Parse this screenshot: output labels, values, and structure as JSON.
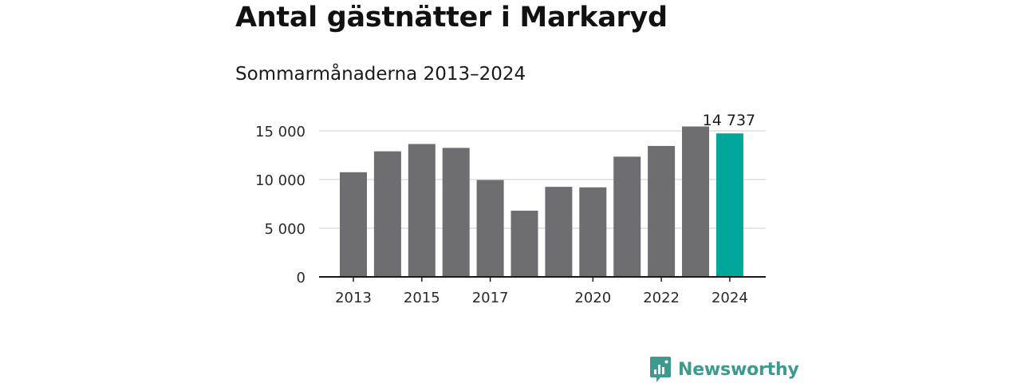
{
  "header": {
    "title": "Antal gästnätter i Markaryd",
    "subtitle": "Sommarmånaderna 2013–2024"
  },
  "brand": {
    "name": "Newsworthy",
    "icon": "newsworthy-logo-icon",
    "color": "#3c9a90"
  },
  "colors": {
    "bar": "#6e6d72",
    "highlight": "#00a69a",
    "grid": "#dddddd",
    "axis": "#1a1a1a"
  },
  "chart_data": {
    "type": "bar",
    "title": "Antal gästnätter i Markaryd",
    "subtitle": "Sommarmånaderna 2013–2024",
    "categories": [
      "2013",
      "2014",
      "2015",
      "2016",
      "2017",
      "2018",
      "2019",
      "2020",
      "2021",
      "2022",
      "2023",
      "2024"
    ],
    "values": [
      10750,
      12900,
      13650,
      13250,
      9950,
      6800,
      9250,
      9200,
      12350,
      13450,
      15450,
      14737
    ],
    "x_tick_labels": [
      "2013",
      "2015",
      "2017",
      "2020",
      "2022",
      "2024"
    ],
    "y_ticks": [
      0,
      5000,
      10000,
      15000
    ],
    "y_tick_labels": [
      "0",
      "5 000",
      "10 000",
      "15 000"
    ],
    "ylim": [
      0,
      15000
    ],
    "highlight_category": "2024",
    "data_labels": [
      {
        "category": "2024",
        "text": "14 737"
      }
    ],
    "grid": true,
    "xlabel": "",
    "ylabel": ""
  }
}
